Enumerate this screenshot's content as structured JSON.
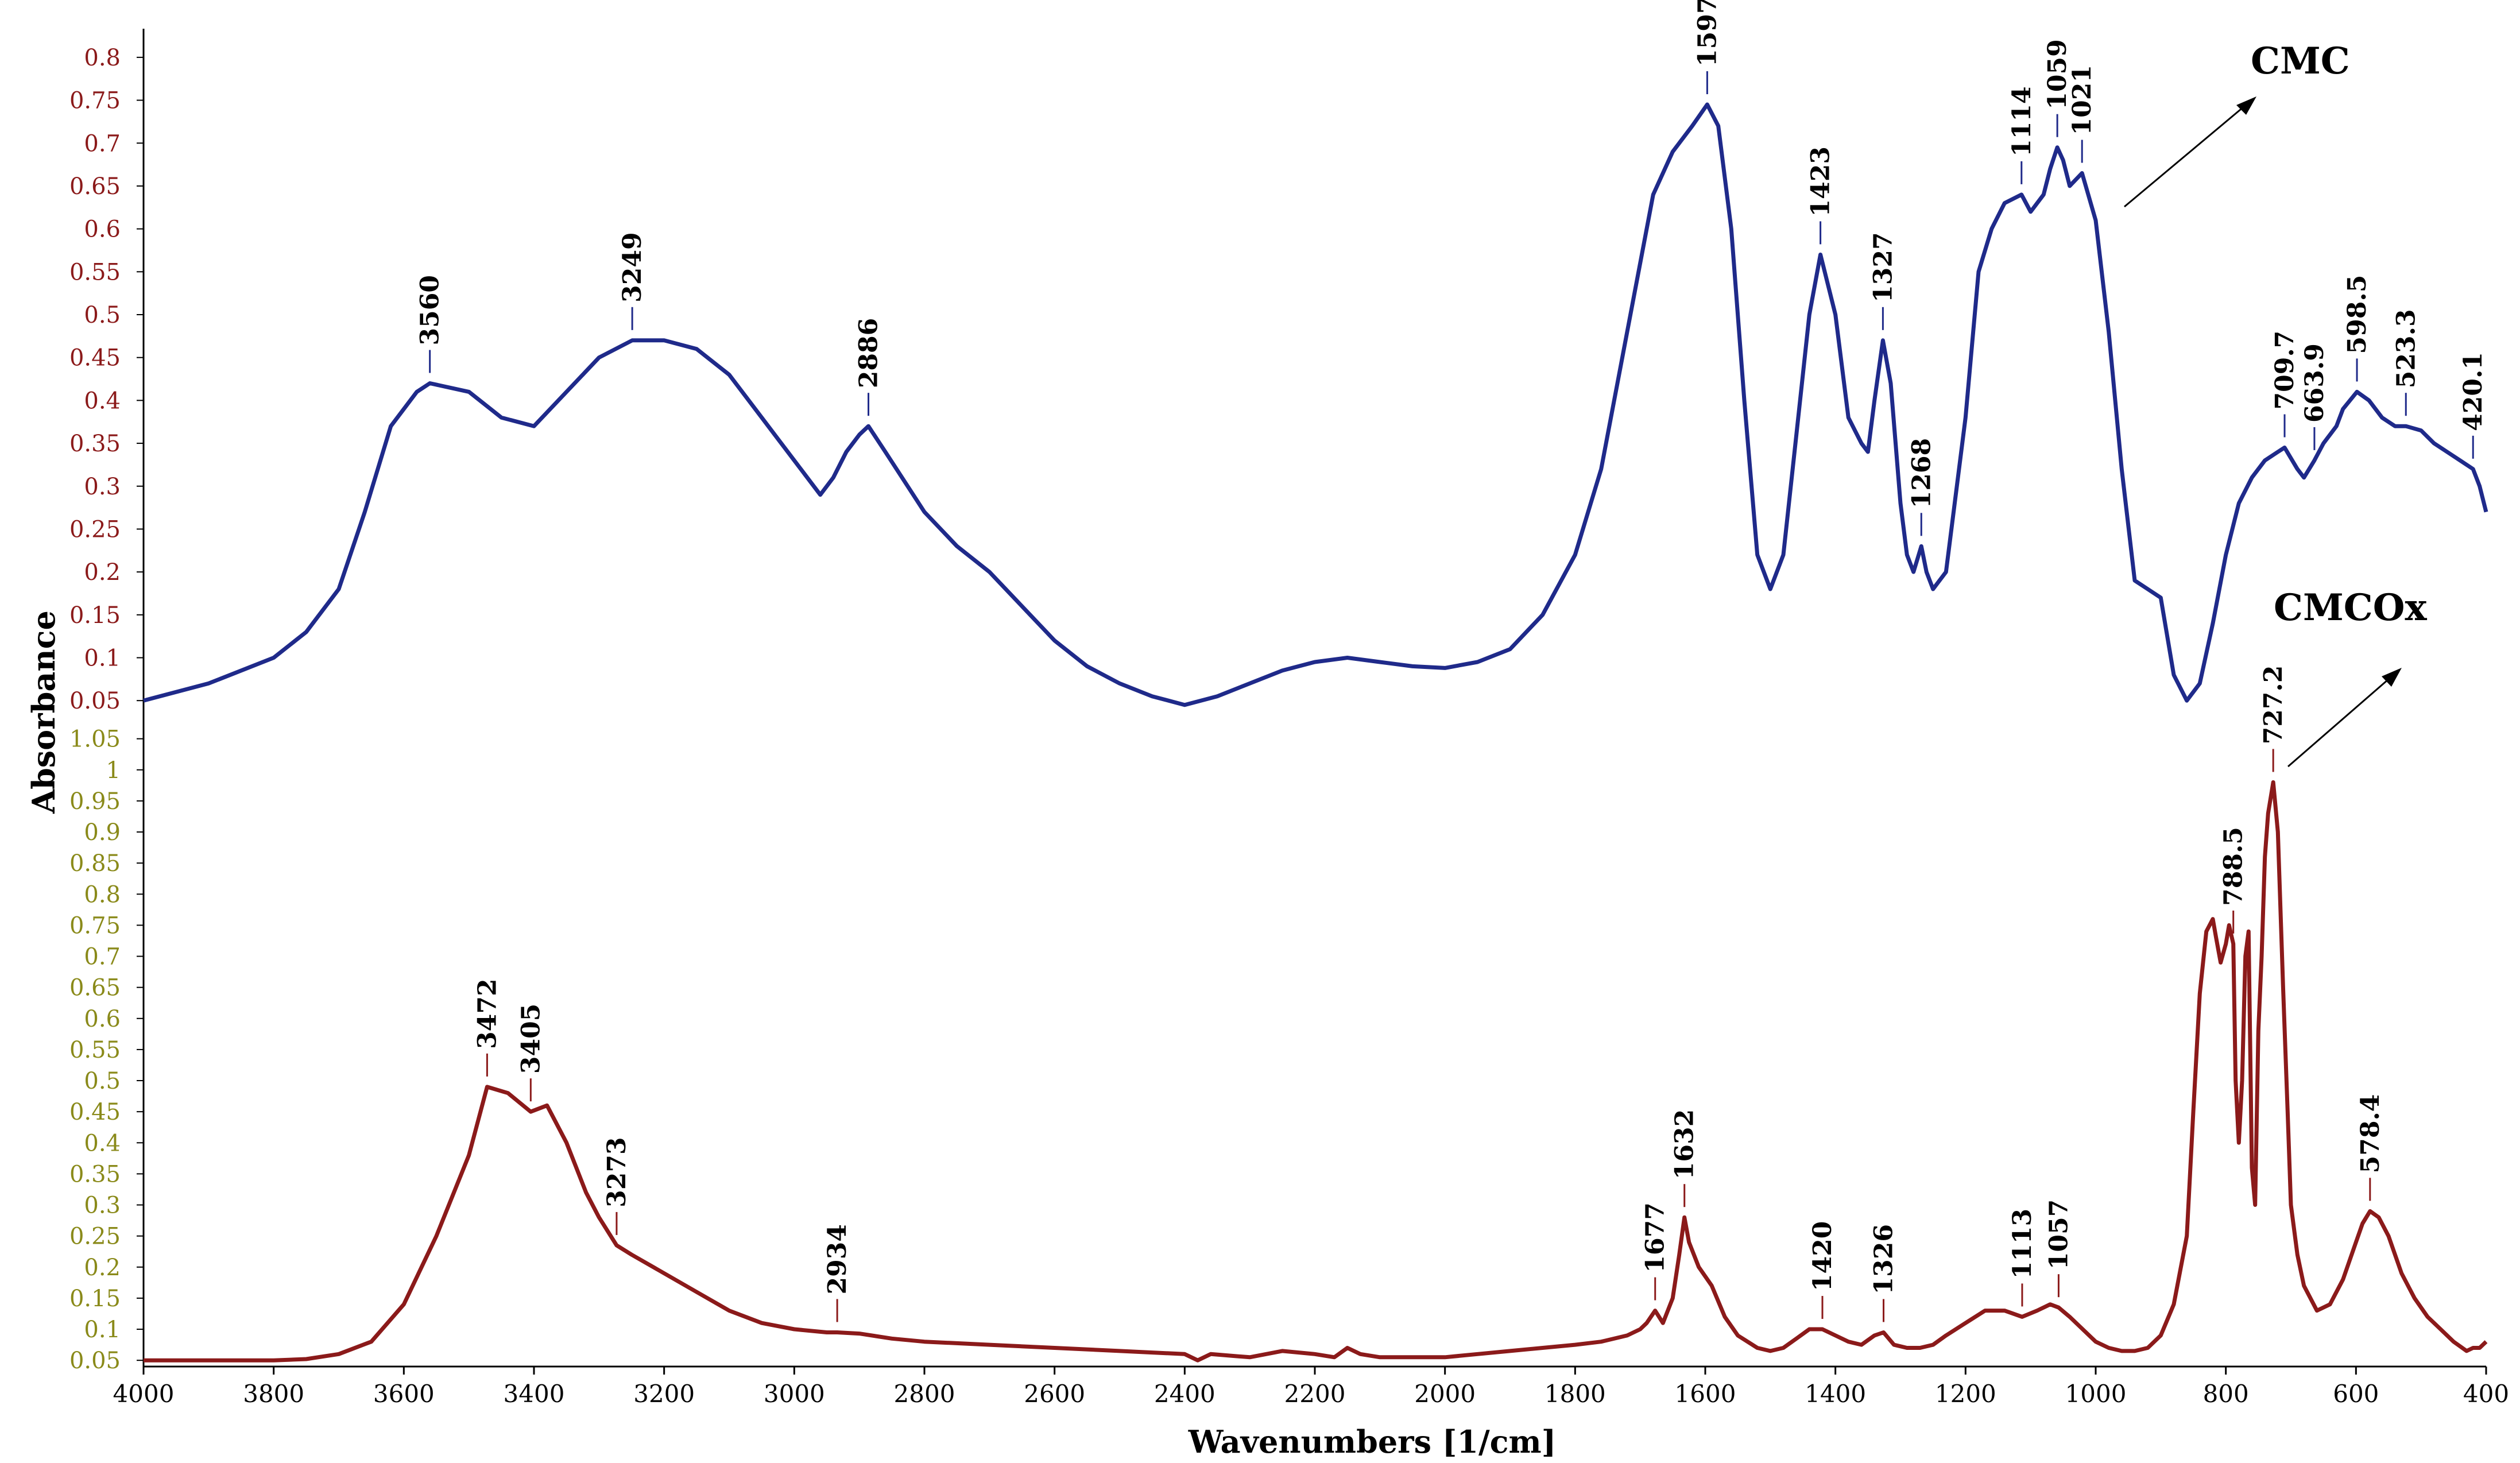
{
  "chart_data": {
    "type": "line",
    "xlabel": "Wavenumbers [1/cm]",
    "ylabel": "Absorbance",
    "xlim": [
      4000,
      400
    ],
    "x_ticks": [
      "4000",
      "3800",
      "3600",
      "3400",
      "3200",
      "3000",
      "2800",
      "2600",
      "2400",
      "2200",
      "2000",
      "1800",
      "1600",
      "1400",
      "1200",
      "1000",
      "800",
      "600",
      "400"
    ],
    "panels": [
      {
        "name": "CMC",
        "color": "#1f2a8a",
        "tick_color": "#8b1a1a",
        "ylim": [
          0.02,
          0.82
        ],
        "y_ticks": [
          "0.8",
          "0.75",
          "0.7",
          "0.65",
          "0.6",
          "0.55",
          "0.5",
          "0.45",
          "0.4",
          "0.35",
          "0.3",
          "0.25",
          "0.2",
          "0.15",
          "0.1",
          "0.05"
        ],
        "series": {
          "x": [
            4000,
            3900,
            3800,
            3750,
            3700,
            3660,
            3620,
            3580,
            3560,
            3500,
            3450,
            3400,
            3350,
            3300,
            3249,
            3200,
            3150,
            3100,
            3050,
            3000,
            2960,
            2940,
            2920,
            2900,
            2886,
            2860,
            2800,
            2750,
            2700,
            2650,
            2600,
            2550,
            2500,
            2450,
            2400,
            2350,
            2300,
            2250,
            2200,
            2150,
            2100,
            2050,
            2000,
            1950,
            1900,
            1850,
            1800,
            1760,
            1720,
            1680,
            1650,
            1620,
            1597,
            1580,
            1560,
            1540,
            1520,
            1500,
            1480,
            1460,
            1440,
            1423,
            1400,
            1380,
            1360,
            1350,
            1340,
            1327,
            1315,
            1300,
            1290,
            1280,
            1268,
            1260,
            1250,
            1230,
            1200,
            1180,
            1160,
            1140,
            1114,
            1100,
            1080,
            1070,
            1059,
            1050,
            1040,
            1021,
            1000,
            980,
            960,
            940,
            920,
            900,
            880,
            860,
            840,
            820,
            800,
            780,
            760,
            740,
            720,
            709.7,
            690,
            680,
            663.9,
            650,
            630,
            620,
            598.5,
            580,
            560,
            540,
            523.3,
            500,
            480,
            460,
            440,
            420.1,
            410,
            400
          ],
          "y": [
            0.05,
            0.07,
            0.1,
            0.13,
            0.18,
            0.27,
            0.37,
            0.41,
            0.42,
            0.41,
            0.38,
            0.37,
            0.41,
            0.45,
            0.47,
            0.47,
            0.46,
            0.43,
            0.38,
            0.33,
            0.29,
            0.31,
            0.34,
            0.36,
            0.37,
            0.34,
            0.27,
            0.23,
            0.2,
            0.16,
            0.12,
            0.09,
            0.07,
            0.055,
            0.045,
            0.055,
            0.07,
            0.085,
            0.095,
            0.1,
            0.095,
            0.09,
            0.088,
            0.095,
            0.11,
            0.15,
            0.22,
            0.32,
            0.48,
            0.64,
            0.69,
            0.72,
            0.745,
            0.72,
            0.6,
            0.4,
            0.22,
            0.18,
            0.22,
            0.36,
            0.5,
            0.57,
            0.5,
            0.38,
            0.35,
            0.34,
            0.4,
            0.47,
            0.42,
            0.28,
            0.22,
            0.2,
            0.23,
            0.2,
            0.18,
            0.2,
            0.38,
            0.55,
            0.6,
            0.63,
            0.64,
            0.62,
            0.64,
            0.67,
            0.695,
            0.68,
            0.65,
            0.665,
            0.61,
            0.48,
            0.32,
            0.19,
            0.18,
            0.17,
            0.08,
            0.05,
            0.07,
            0.14,
            0.22,
            0.28,
            0.31,
            0.33,
            0.34,
            0.345,
            0.32,
            0.31,
            0.33,
            0.35,
            0.37,
            0.39,
            0.41,
            0.4,
            0.38,
            0.37,
            0.37,
            0.365,
            0.35,
            0.34,
            0.33,
            0.32,
            0.3,
            0.27
          ]
        },
        "peaks": [
          {
            "x": 3560,
            "label": "3560"
          },
          {
            "x": 3249,
            "label": "3249"
          },
          {
            "x": 2886,
            "label": "2886"
          },
          {
            "x": 1597,
            "label": "1597"
          },
          {
            "x": 1423,
            "label": "1423"
          },
          {
            "x": 1327,
            "label": "1327"
          },
          {
            "x": 1268,
            "label": "1268"
          },
          {
            "x": 1114,
            "label": "1114"
          },
          {
            "x": 1059,
            "label": "1059"
          },
          {
            "x": 1021,
            "label": "1021"
          },
          {
            "x": 709.7,
            "label": "709.7"
          },
          {
            "x": 663.9,
            "label": "663.9"
          },
          {
            "x": 598.5,
            "label": "598.5"
          },
          {
            "x": 523.3,
            "label": "523.3"
          },
          {
            "x": 420.1,
            "label": "420.1"
          }
        ]
      },
      {
        "name": "CMCOx",
        "color": "#8b1a1a",
        "tick_color": "#8a8a1a",
        "ylim": [
          0.04,
          1.07
        ],
        "y_ticks": [
          "1.05",
          "1",
          "0.95",
          "0.9",
          "0.85",
          "0.8",
          "0.75",
          "0.7",
          "0.65",
          "0.6",
          "0.55",
          "0.5",
          "0.45",
          "0.4",
          "0.35",
          "0.3",
          "0.25",
          "0.2",
          "0.15",
          "0.1",
          "0.05"
        ],
        "series": {
          "x": [
            4000,
            3900,
            3800,
            3750,
            3700,
            3650,
            3600,
            3550,
            3500,
            3472,
            3440,
            3405,
            3380,
            3350,
            3320,
            3300,
            3273,
            3250,
            3200,
            3150,
            3100,
            3050,
            3000,
            2950,
            2934,
            2900,
            2850,
            2800,
            2700,
            2600,
            2500,
            2400,
            2380,
            2360,
            2300,
            2250,
            2200,
            2170,
            2150,
            2130,
            2100,
            2050,
            2000,
            1950,
            1900,
            1850,
            1800,
            1760,
            1720,
            1700,
            1690,
            1677,
            1665,
            1650,
            1640,
            1632,
            1625,
            1610,
            1590,
            1570,
            1550,
            1520,
            1500,
            1480,
            1460,
            1440,
            1420,
            1400,
            1380,
            1360,
            1340,
            1326,
            1310,
            1290,
            1270,
            1250,
            1230,
            1200,
            1170,
            1140,
            1113,
            1090,
            1080,
            1070,
            1057,
            1040,
            1020,
            1000,
            980,
            960,
            940,
            920,
            900,
            880,
            860,
            850,
            840,
            830,
            820,
            815,
            808,
            800,
            795,
            788.5,
            785,
            780,
            775,
            770,
            765,
            760,
            755,
            750,
            745,
            740,
            735,
            727.2,
            720,
            712,
            705,
            700,
            690,
            680,
            660,
            640,
            620,
            600,
            590,
            578.4,
            565,
            550,
            530,
            510,
            490,
            470,
            450,
            430,
            420,
            410,
            400
          ],
          "y": [
            0.05,
            0.05,
            0.05,
            0.052,
            0.06,
            0.08,
            0.14,
            0.25,
            0.38,
            0.49,
            0.48,
            0.45,
            0.46,
            0.4,
            0.32,
            0.28,
            0.235,
            0.22,
            0.19,
            0.16,
            0.13,
            0.11,
            0.1,
            0.095,
            0.095,
            0.093,
            0.085,
            0.08,
            0.075,
            0.07,
            0.065,
            0.06,
            0.05,
            0.06,
            0.055,
            0.065,
            0.06,
            0.055,
            0.07,
            0.06,
            0.055,
            0.055,
            0.055,
            0.06,
            0.065,
            0.07,
            0.075,
            0.08,
            0.09,
            0.1,
            0.11,
            0.13,
            0.11,
            0.15,
            0.22,
            0.28,
            0.24,
            0.2,
            0.17,
            0.12,
            0.09,
            0.07,
            0.065,
            0.07,
            0.085,
            0.1,
            0.1,
            0.09,
            0.08,
            0.075,
            0.09,
            0.095,
            0.075,
            0.07,
            0.07,
            0.075,
            0.09,
            0.11,
            0.13,
            0.13,
            0.12,
            0.13,
            0.135,
            0.14,
            0.135,
            0.12,
            0.1,
            0.08,
            0.07,
            0.065,
            0.065,
            0.07,
            0.09,
            0.14,
            0.25,
            0.45,
            0.64,
            0.74,
            0.76,
            0.73,
            0.69,
            0.72,
            0.75,
            0.72,
            0.5,
            0.4,
            0.5,
            0.7,
            0.74,
            0.36,
            0.3,
            0.58,
            0.7,
            0.86,
            0.93,
            0.98,
            0.9,
            0.65,
            0.45,
            0.3,
            0.22,
            0.17,
            0.13,
            0.14,
            0.18,
            0.24,
            0.27,
            0.29,
            0.28,
            0.25,
            0.19,
            0.15,
            0.12,
            0.1,
            0.08,
            0.065,
            0.07,
            0.07,
            0.08
          ]
        },
        "peaks": [
          {
            "x": 3472,
            "label": "3472"
          },
          {
            "x": 3405,
            "label": "3405"
          },
          {
            "x": 3273,
            "label": "3273"
          },
          {
            "x": 2934,
            "label": "2934"
          },
          {
            "x": 1677,
            "label": "1677"
          },
          {
            "x": 1632,
            "label": "1632"
          },
          {
            "x": 1420,
            "label": "1420"
          },
          {
            "x": 1326,
            "label": "1326"
          },
          {
            "x": 1113,
            "label": "1113"
          },
          {
            "x": 1057,
            "label": "1057"
          },
          {
            "x": 788.5,
            "label": "788.5"
          },
          {
            "x": 727.2,
            "label": "727.2"
          },
          {
            "x": 578.4,
            "label": "578.4"
          }
        ]
      }
    ]
  }
}
